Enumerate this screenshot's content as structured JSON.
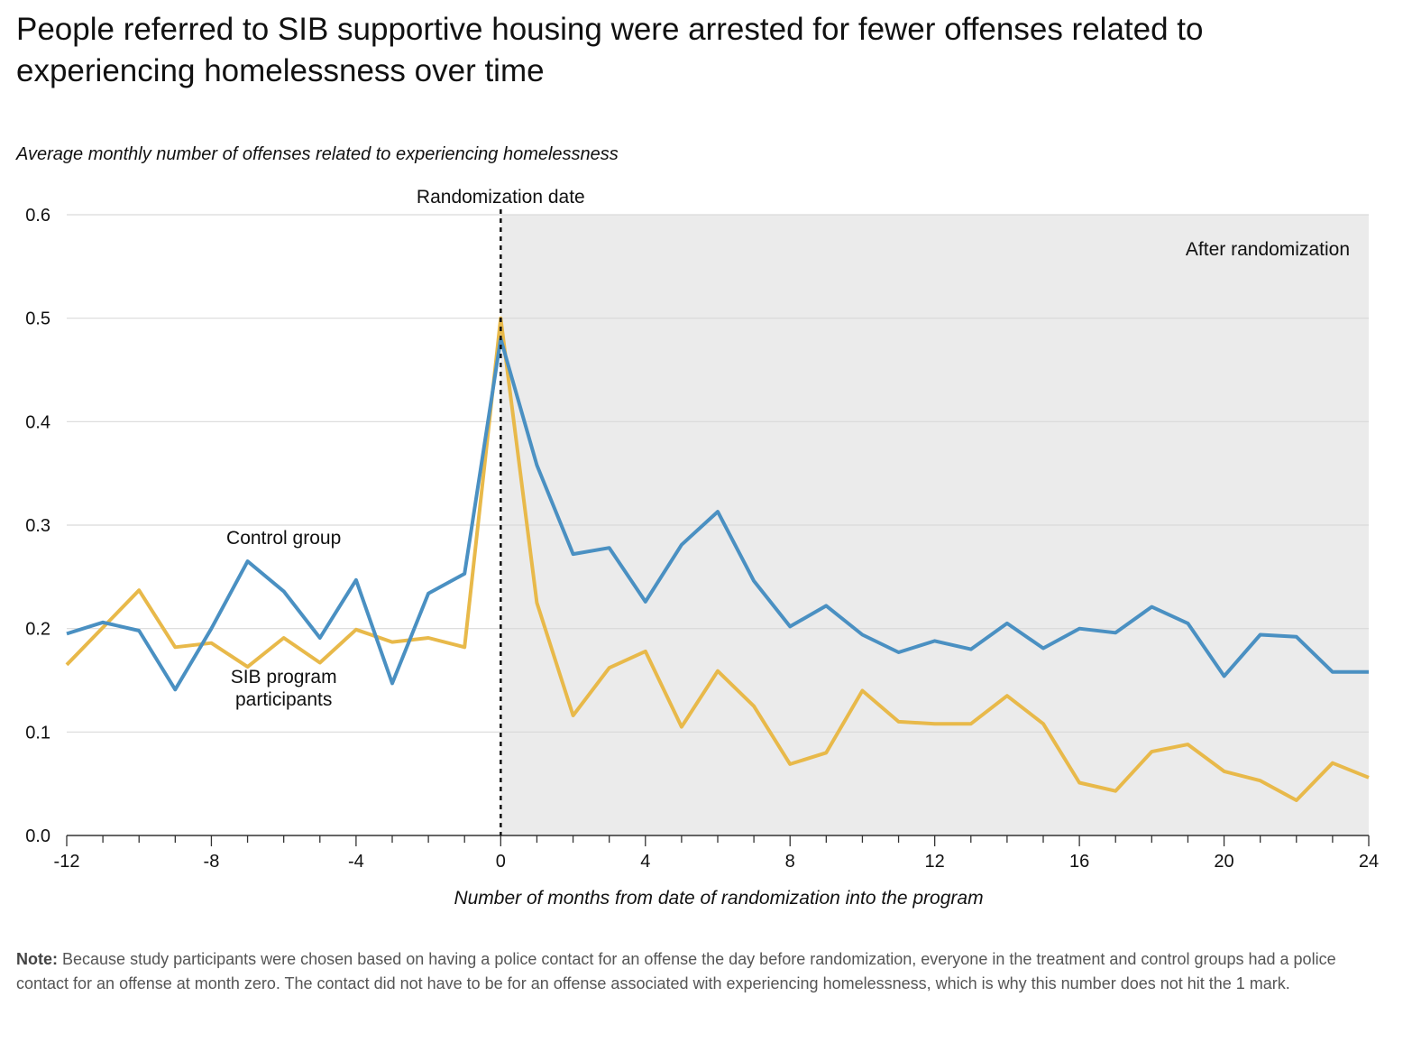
{
  "title": "People referred to SIB supportive housing were arrested for fewer offenses related to experiencing homelessness over time",
  "note": {
    "label": "Note:",
    "text": "Because study participants were chosen based on having a police contact for an offense the day before randomization, everyone in the treatment and control groups had a police contact for an offense at month zero. The contact did not have to be for an offense associated with experiencing homelessness, which is why this number does not hit the 1 mark."
  },
  "colors": {
    "control": "#4a90c2",
    "sib": "#e8b94a",
    "shade": "#ebebeb",
    "grid": "#d9d9d9"
  },
  "chart_data": {
    "type": "line",
    "ylabel": "Average monthly number of offenses related to experiencing homelessness",
    "xlabel": "Number of months from date of randomization into the program",
    "xlim": [
      -12,
      24
    ],
    "ylim": [
      0,
      0.6
    ],
    "x_ticks": [
      -12,
      -8,
      -4,
      0,
      4,
      8,
      12,
      16,
      20,
      24
    ],
    "y_ticks": [
      0.0,
      0.1,
      0.2,
      0.3,
      0.4,
      0.5,
      0.6
    ],
    "y_tick_labels": [
      "0.0",
      "0.1",
      "0.2",
      "0.3",
      "0.4",
      "0.5",
      "0.6"
    ],
    "grid": true,
    "annotations": {
      "randomization_label": "Randomization date",
      "after_label": "After randomization",
      "control_label": "Control group",
      "sib_label_line1": "SIB program",
      "sib_label_line2": "participants"
    },
    "x": [
      -12,
      -11,
      -10,
      -9,
      -8,
      -7,
      -6,
      -5,
      -4,
      -3,
      -2,
      -1,
      0,
      1,
      2,
      3,
      4,
      5,
      6,
      7,
      8,
      9,
      10,
      11,
      12,
      13,
      14,
      15,
      16,
      17,
      18,
      19,
      20,
      21,
      22,
      23,
      24
    ],
    "series": [
      {
        "name": "Control group",
        "color": "#4a90c2",
        "values": [
          0.195,
          0.206,
          0.198,
          0.141,
          0.2,
          0.265,
          0.236,
          0.191,
          0.247,
          0.147,
          0.234,
          0.253,
          0.48,
          0.358,
          0.272,
          0.278,
          0.226,
          0.281,
          0.313,
          0.246,
          0.202,
          0.222,
          0.194,
          0.177,
          0.188,
          0.18,
          0.205,
          0.181,
          0.2,
          0.196,
          0.221,
          0.205,
          0.154,
          0.194,
          0.192,
          0.158,
          0.158
        ]
      },
      {
        "name": "SIB program participants",
        "color": "#e8b94a",
        "values": [
          0.165,
          0.201,
          0.237,
          0.182,
          0.186,
          0.163,
          0.191,
          0.167,
          0.199,
          0.187,
          0.191,
          0.182,
          0.5,
          0.225,
          0.116,
          0.162,
          0.178,
          0.105,
          0.159,
          0.125,
          0.069,
          0.08,
          0.14,
          0.11,
          0.108,
          0.108,
          0.135,
          0.108,
          0.051,
          0.043,
          0.081,
          0.088,
          0.062,
          0.053,
          0.034,
          0.07,
          0.056
        ]
      }
    ]
  }
}
